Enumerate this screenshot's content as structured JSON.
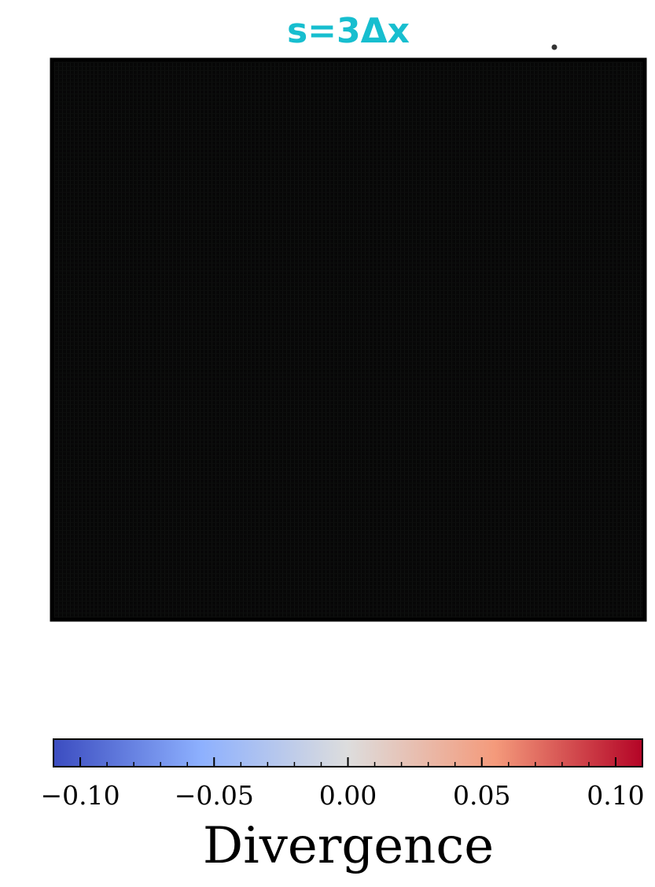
{
  "chart_data": {
    "type": "heatmap",
    "title": "s=3Δx",
    "title_color": "#17becf",
    "field_color": "#080808",
    "colormap": "coolwarm",
    "colormap_stops": [
      "#3b4cc0",
      "#8db0fe",
      "#dddddd",
      "#f49a7b",
      "#b40426"
    ],
    "colorbar": {
      "label": "Divergence",
      "range": [
        -0.11,
        0.11
      ],
      "ticks": [
        -0.1,
        -0.05,
        0.0,
        0.05,
        0.1
      ],
      "tick_labels": [
        "−0.10",
        "−0.05",
        "0.00",
        "0.05",
        "0.10"
      ],
      "minor_tick_step": 0.01,
      "orientation": "horizontal"
    },
    "grid": false
  }
}
